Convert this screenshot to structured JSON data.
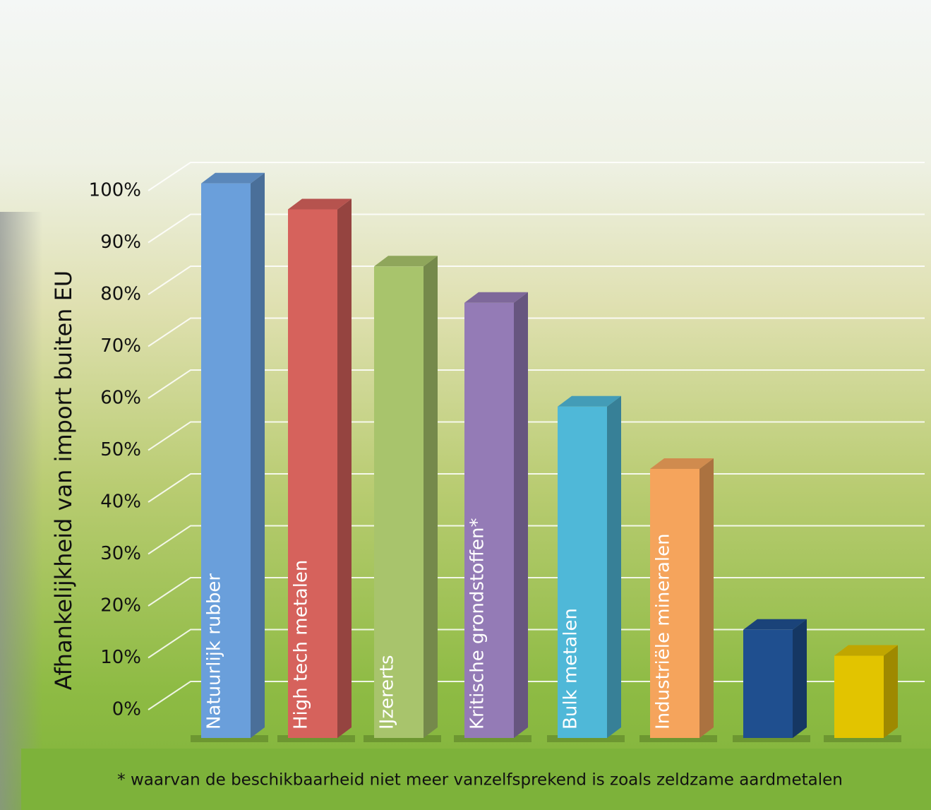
{
  "chart_data": {
    "type": "bar3d",
    "y_label": "Afhankelijkheid van import buiten EU",
    "categories": [
      "Natuurlijk rubber",
      "High tech metalen",
      "IJzererts",
      "Kritische grondstoffen*",
      "Bulk metalen",
      "Industriële mineralen",
      null,
      null
    ],
    "values": [
      98,
      93,
      82,
      75,
      55,
      43,
      12,
      7
    ],
    "colors": [
      "#6a9fdb",
      "#d6625c",
      "#a8c46c",
      "#947bb6",
      "#4fb8d8",
      "#f5a45c",
      "#1f4f8f",
      "#e2c400"
    ],
    "ylim": [
      0,
      100
    ],
    "yticks": [
      {
        "value": 0,
        "label": "0%"
      },
      {
        "value": 10,
        "label": "10%"
      },
      {
        "value": 20,
        "label": "20%"
      },
      {
        "value": 30,
        "label": "30%"
      },
      {
        "value": 40,
        "label": "40%"
      },
      {
        "value": 50,
        "label": "50%"
      },
      {
        "value": 60,
        "label": "60%"
      },
      {
        "value": 70,
        "label": "70%"
      },
      {
        "value": 80,
        "label": "80%"
      },
      {
        "value": 90,
        "label": "90%"
      },
      {
        "value": 100,
        "label": "100%"
      }
    ],
    "grid": true,
    "footnote": "* waarvan de beschikbaarheid niet meer vanzelfsprekend is zoals zeldzame aardmetalen"
  }
}
